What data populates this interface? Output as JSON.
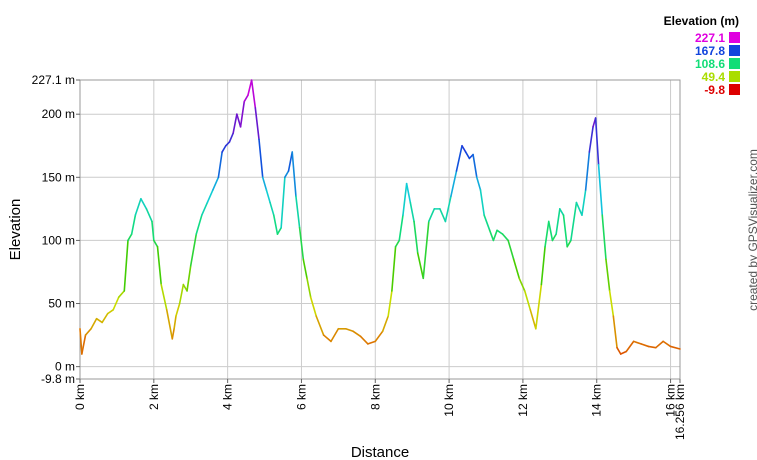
{
  "chart_data": {
    "type": "line",
    "title": "",
    "xlabel": "Distance",
    "ylabel": "Elevation",
    "xlim": [
      0,
      16.256
    ],
    "ylim": [
      -9.8,
      227.1
    ],
    "grid": true,
    "x_ticks": [
      {
        "value": 0,
        "label": "0 km"
      },
      {
        "value": 2,
        "label": "2 km"
      },
      {
        "value": 4,
        "label": "4 km"
      },
      {
        "value": 6,
        "label": "6 km"
      },
      {
        "value": 8,
        "label": "8 km"
      },
      {
        "value": 10,
        "label": "10 km"
      },
      {
        "value": 12,
        "label": "12 km"
      },
      {
        "value": 14,
        "label": "14 km"
      },
      {
        "value": 16,
        "label": "16 km"
      },
      {
        "value": 16.256,
        "label": "16.256 km"
      }
    ],
    "y_ticks": [
      {
        "value": -9.8,
        "label": "-9.8 m"
      },
      {
        "value": 0,
        "label": "0 m"
      },
      {
        "value": 50,
        "label": "50 m"
      },
      {
        "value": 100,
        "label": "100 m"
      },
      {
        "value": 150,
        "label": "150 m"
      },
      {
        "value": 200,
        "label": "200 m"
      },
      {
        "value": 227.1,
        "label": "227.1 m"
      }
    ],
    "legend": {
      "title": "Elevation (m)",
      "placement": "top-right",
      "entries": [
        {
          "label": "227.1",
          "color": "#e000e0"
        },
        {
          "label": "167.8",
          "color": "#1144dd"
        },
        {
          "label": "108.6",
          "color": "#11dd77"
        },
        {
          "label": "49.4",
          "color": "#aadd00"
        },
        {
          "label": "-9.8",
          "color": "#dd0000"
        }
      ]
    },
    "color_scale": [
      {
        "value": -9.8,
        "color": "#dd0000"
      },
      {
        "value": 20,
        "color": "#dd7700"
      },
      {
        "value": 49.4,
        "color": "#ccdd00"
      },
      {
        "value": 79,
        "color": "#44cc00"
      },
      {
        "value": 108.6,
        "color": "#11dd77"
      },
      {
        "value": 138,
        "color": "#11ccdd"
      },
      {
        "value": 167.8,
        "color": "#1144dd"
      },
      {
        "value": 197,
        "color": "#7711cc"
      },
      {
        "value": 227.1,
        "color": "#e000e0"
      }
    ],
    "series": [
      {
        "x": [
          0,
          0.05,
          0.15,
          0.3,
          0.45,
          0.6,
          0.75,
          0.9,
          1.05,
          1.2,
          1.3,
          1.4,
          1.5,
          1.65,
          1.8,
          1.95,
          2.0,
          2.1,
          2.2,
          2.35,
          2.5,
          2.55,
          2.6,
          2.7,
          2.8,
          2.9,
          3.0,
          3.15,
          3.3,
          3.45,
          3.6,
          3.75,
          3.85,
          3.95,
          4.05,
          4.15,
          4.25,
          4.35,
          4.45,
          4.55,
          4.65,
          4.75,
          4.85,
          4.95,
          5.05,
          5.15,
          5.25,
          5.35,
          5.45,
          5.55,
          5.65,
          5.75,
          5.85,
          5.95,
          6.05,
          6.15,
          6.25,
          6.4,
          6.6,
          6.8,
          7.0,
          7.2,
          7.4,
          7.6,
          7.8,
          8.0,
          8.2,
          8.35,
          8.45,
          8.55,
          8.65,
          8.75,
          8.85,
          8.95,
          9.05,
          9.15,
          9.3,
          9.45,
          9.6,
          9.75,
          9.9,
          10.05,
          10.2,
          10.35,
          10.45,
          10.55,
          10.65,
          10.75,
          10.85,
          10.95,
          11.1,
          11.2,
          11.3,
          11.45,
          11.6,
          11.75,
          11.9,
          12.05,
          12.2,
          12.35,
          12.5,
          12.6,
          12.7,
          12.8,
          12.9,
          13.0,
          13.1,
          13.2,
          13.3,
          13.45,
          13.6,
          13.7,
          13.8,
          13.9,
          13.97,
          14.05,
          14.15,
          14.25,
          14.35,
          14.45,
          14.55,
          14.65,
          14.8,
          15.0,
          15.2,
          15.4,
          15.6,
          15.8,
          16.0,
          16.256
        ],
        "y": [
          30,
          10,
          25,
          30,
          38,
          35,
          42,
          45,
          55,
          60,
          100,
          105,
          120,
          133,
          125,
          115,
          100,
          95,
          65,
          45,
          22,
          30,
          40,
          50,
          65,
          60,
          80,
          105,
          120,
          130,
          140,
          150,
          170,
          175,
          178,
          185,
          200,
          190,
          210,
          215,
          227,
          205,
          180,
          150,
          140,
          130,
          120,
          105,
          110,
          150,
          155,
          170,
          135,
          110,
          85,
          70,
          55,
          40,
          25,
          20,
          30,
          30,
          28,
          24,
          18,
          20,
          28,
          40,
          60,
          95,
          100,
          120,
          145,
          130,
          115,
          90,
          70,
          115,
          125,
          125,
          115,
          135,
          155,
          175,
          170,
          165,
          168,
          150,
          140,
          120,
          108,
          100,
          108,
          105,
          100,
          85,
          70,
          60,
          45,
          30,
          65,
          95,
          115,
          100,
          105,
          125,
          120,
          95,
          100,
          130,
          120,
          140,
          170,
          190,
          197,
          160,
          120,
          85,
          60,
          40,
          15,
          10,
          12,
          20,
          18,
          16,
          15,
          20,
          16,
          14
        ]
      }
    ]
  },
  "credit": "created by GPSVisualizer.com"
}
